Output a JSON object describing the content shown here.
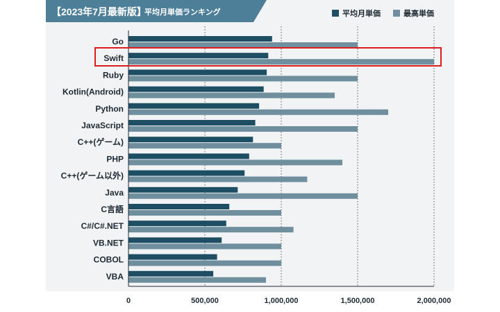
{
  "header": {
    "title": "【2023年7月最新版】",
    "subtitle": "平均月単価ランキング"
  },
  "colors": {
    "avg": "#1e4e63",
    "max": "#6f8f9f",
    "header": "#4e7f98",
    "highlight": "#e01b1b"
  },
  "chart_data": {
    "type": "bar",
    "orientation": "horizontal",
    "categories": [
      "Go",
      "Swift",
      "Ruby",
      "Kotlin(Android)",
      "Python",
      "JavaScript",
      "C++(ゲーム)",
      "PHP",
      "C++(ゲーム以外)",
      "Java",
      "C言語",
      "C#/C#.NET",
      "VB.NET",
      "COBOL",
      "VBA"
    ],
    "series": [
      {
        "name": "平均月単価",
        "values": [
          940000,
          915000,
          905000,
          885000,
          855000,
          830000,
          815000,
          790000,
          760000,
          715000,
          660000,
          640000,
          610000,
          580000,
          555000
        ]
      },
      {
        "name": "最高単価",
        "values": [
          1500000,
          2000000,
          1500000,
          1350000,
          1700000,
          1500000,
          1000000,
          1400000,
          1170000,
          1500000,
          1000000,
          1080000,
          1000000,
          1000000,
          900000
        ]
      }
    ],
    "x_ticks": [
      "0",
      "500,000",
      "1,000,000",
      "1,500,000",
      "2,000,000"
    ],
    "xlim": [
      0,
      2000000
    ],
    "gridlines": "dotted",
    "legend": "top-right",
    "highlighted_category": "Swift"
  }
}
